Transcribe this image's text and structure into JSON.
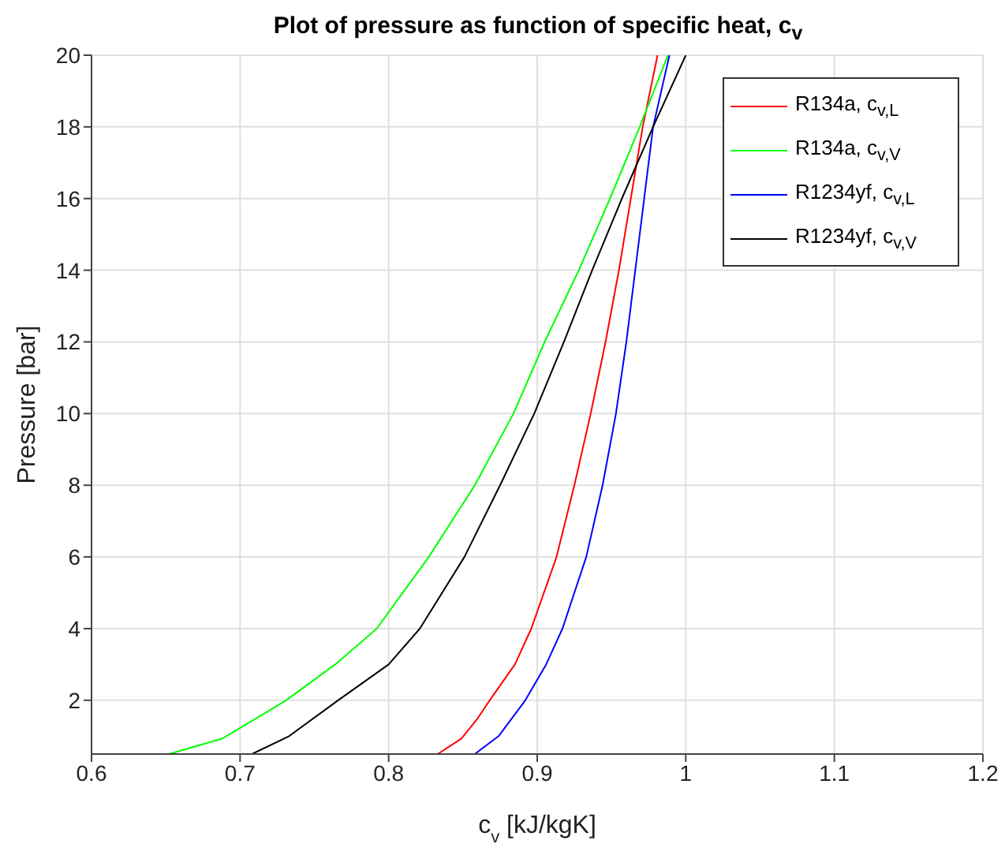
{
  "chart_data": {
    "type": "line",
    "title": "Plot of pressure as function of specific heat, c$_{v}$",
    "xlabel": "c$_{v}$ [kJ/kgK]",
    "ylabel": "Pressure [bar]",
    "xlim": [
      0.6,
      1.2
    ],
    "xticks": [
      0.6,
      0.7,
      0.8,
      0.9,
      1,
      1.1,
      1.2
    ],
    "ylim": [
      0.5,
      20
    ],
    "yticks": [
      2,
      4,
      6,
      8,
      10,
      12,
      14,
      16,
      18,
      20
    ],
    "grid": true,
    "legend": "top right",
    "marker": "none",
    "line_style": "solid",
    "series": [
      {
        "name": "R134a, c$_{v,L}$",
        "color": "#ff0000",
        "x": [
          0.833,
          0.849,
          0.86,
          0.868,
          0.885,
          0.896,
          0.913,
          0.925,
          0.936,
          0.946,
          0.955,
          0.963,
          0.971,
          0.981
        ],
        "values": [
          0.5,
          0.93,
          1.5,
          2,
          3,
          4,
          6,
          8,
          10,
          12,
          14,
          16,
          18,
          20
        ]
      },
      {
        "name": "R134a, c$_{v,V}$",
        "color": "#00ff00",
        "x": [
          0.652,
          0.688,
          0.711,
          0.731,
          0.764,
          0.792,
          0.827,
          0.858,
          0.884,
          0.905,
          0.928,
          0.949,
          0.969,
          0.988
        ],
        "values": [
          0.5,
          0.93,
          1.5,
          2,
          3,
          4,
          6,
          8,
          10,
          12,
          14,
          16,
          18,
          20
        ]
      },
      {
        "name": "R1234yf, c$_{v,L}$",
        "color": "#0000ff",
        "x": [
          0.858,
          0.874,
          0.892,
          0.906,
          0.917,
          0.933,
          0.944,
          0.953,
          0.96,
          0.966,
          0.972,
          0.978,
          0.989
        ],
        "values": [
          0.5,
          1,
          2,
          3,
          4,
          6,
          8,
          10,
          12,
          14,
          16,
          18,
          20
        ]
      },
      {
        "name": "R1234yf, c$_{v,V}$",
        "color": "#000000",
        "x": [
          0.708,
          0.733,
          0.766,
          0.8,
          0.821,
          0.851,
          0.875,
          0.898,
          0.918,
          0.937,
          0.957,
          0.978,
          1
        ],
        "values": [
          0.5,
          1,
          2,
          3,
          4,
          6,
          8,
          10,
          12,
          14,
          16,
          18,
          20
        ]
      }
    ]
  }
}
